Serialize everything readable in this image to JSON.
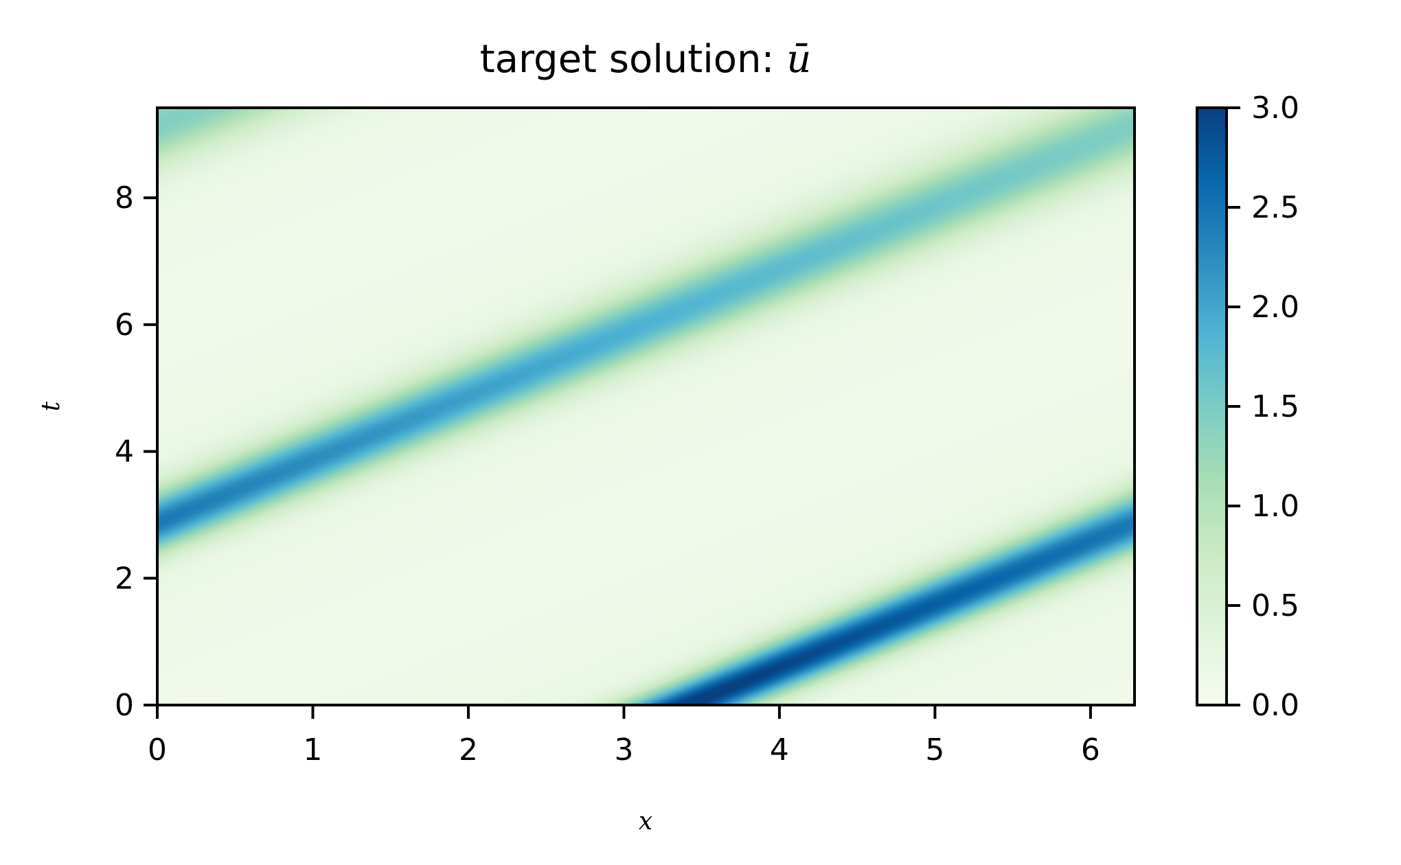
{
  "chart_data": {
    "type": "heatmap",
    "title": "target solution: ",
    "title_math": "ū",
    "xlabel": "x",
    "ylabel": "t",
    "xlim": [
      0,
      6.283
    ],
    "ylim": [
      0,
      9.42
    ],
    "x_ticks": [
      0,
      1,
      2,
      3,
      4,
      5,
      6
    ],
    "x_tick_labels": [
      "0",
      "1",
      "2",
      "3",
      "4",
      "5",
      "6"
    ],
    "y_ticks": [
      0,
      2,
      4,
      6,
      8
    ],
    "y_tick_labels": [
      "0",
      "2",
      "4",
      "6",
      "8"
    ],
    "colorbar": {
      "range": [
        0.0,
        3.0
      ],
      "ticks": [
        0.0,
        0.5,
        1.0,
        1.5,
        2.0,
        2.5,
        3.0
      ],
      "tick_labels": [
        "0.0",
        "0.5",
        "1.0",
        "1.5",
        "2.0",
        "2.5",
        "3.0"
      ],
      "colormap": "GnBu",
      "colors": [
        "#f7fcf0",
        "#e0f3db",
        "#ccebc5",
        "#a8ddb5",
        "#7bccc4",
        "#4eb3d3",
        "#2b8cbe",
        "#0868ac",
        "#084081"
      ]
    },
    "field": {
      "description_values": "traveling wave crest moving right with speed ~1, decaying over time, periodic in x",
      "crest_x_at_t0": 3.4,
      "speed": 1.0,
      "peak_value_t0": 3.0,
      "peak_value_t_max": 1.3,
      "background_value": 0.1
    },
    "grid": false
  }
}
